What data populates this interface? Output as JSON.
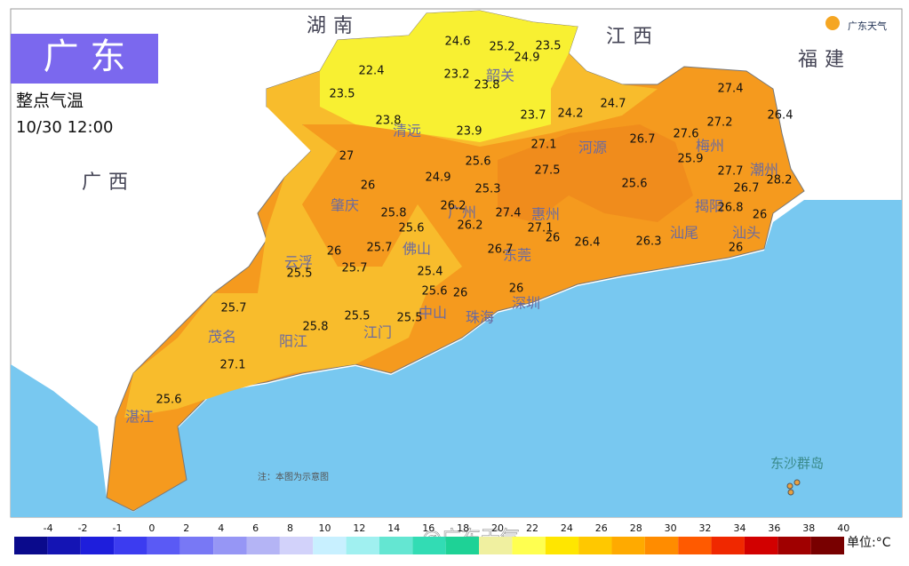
{
  "header": {
    "title": "广 东",
    "subtitle": "整点气温",
    "time": "10/30 12:00",
    "logo": "广东天气"
  },
  "regions": [
    "湖南",
    "江西",
    "福建",
    "广西"
  ],
  "cities": [
    "韶关",
    "清远",
    "河源",
    "梅州",
    "潮州",
    "汕头",
    "揭阳",
    "汕尾",
    "惠州",
    "肇庆",
    "云浮",
    "佛山",
    "广州",
    "东莞",
    "深圳",
    "中山",
    "珠海",
    "江门",
    "阳江",
    "茂名",
    "湛江",
    "东沙群岛"
  ],
  "readings": [
    24.6,
    25.2,
    23.5,
    24.9,
    22.4,
    23.2,
    23.8,
    23.5,
    23.7,
    24.2,
    24.7,
    27.4,
    23.8,
    23.9,
    27.2,
    26.4,
    27.1,
    26.7,
    27.6,
    25.9,
    27,
    25.6,
    27.5,
    27.7,
    24.9,
    26,
    25.3,
    25.6,
    26.7,
    28.2,
    26.2,
    27.4,
    25.8,
    26.8,
    26,
    26.2,
    25.6,
    27.1,
    26,
    26.4,
    26.3,
    25.7,
    26,
    26.7,
    26,
    25.7,
    25.4,
    25.5,
    25.6,
    26,
    26,
    25.7,
    25.5,
    25.5,
    25.8,
    27.1,
    25.6
  ],
  "note": "注：本图为示意图",
  "watermark": "@广东天气",
  "legend": {
    "unit": "单位:°C",
    "ticks": [
      -4,
      -2,
      -1,
      0,
      2,
      4,
      6,
      8,
      10,
      12,
      14,
      16,
      18,
      20,
      22,
      24,
      26,
      28,
      30,
      32,
      34,
      36,
      38,
      40
    ],
    "colors": [
      "#0a0a8c",
      "#1414b4",
      "#1e1edc",
      "#3c3cf0",
      "#5a5af5",
      "#7878f5",
      "#9696f5",
      "#b4b4f5",
      "#d2d2fa",
      "#c8f0ff",
      "#a0f0f0",
      "#64e6d2",
      "#32dcb4",
      "#1ed296",
      "#f0f0a0",
      "#ffff50",
      "#ffe600",
      "#ffc800",
      "#ffaa00",
      "#ff8c00",
      "#ff5a00",
      "#f02800",
      "#d20000",
      "#a00000",
      "#780000"
    ]
  }
}
